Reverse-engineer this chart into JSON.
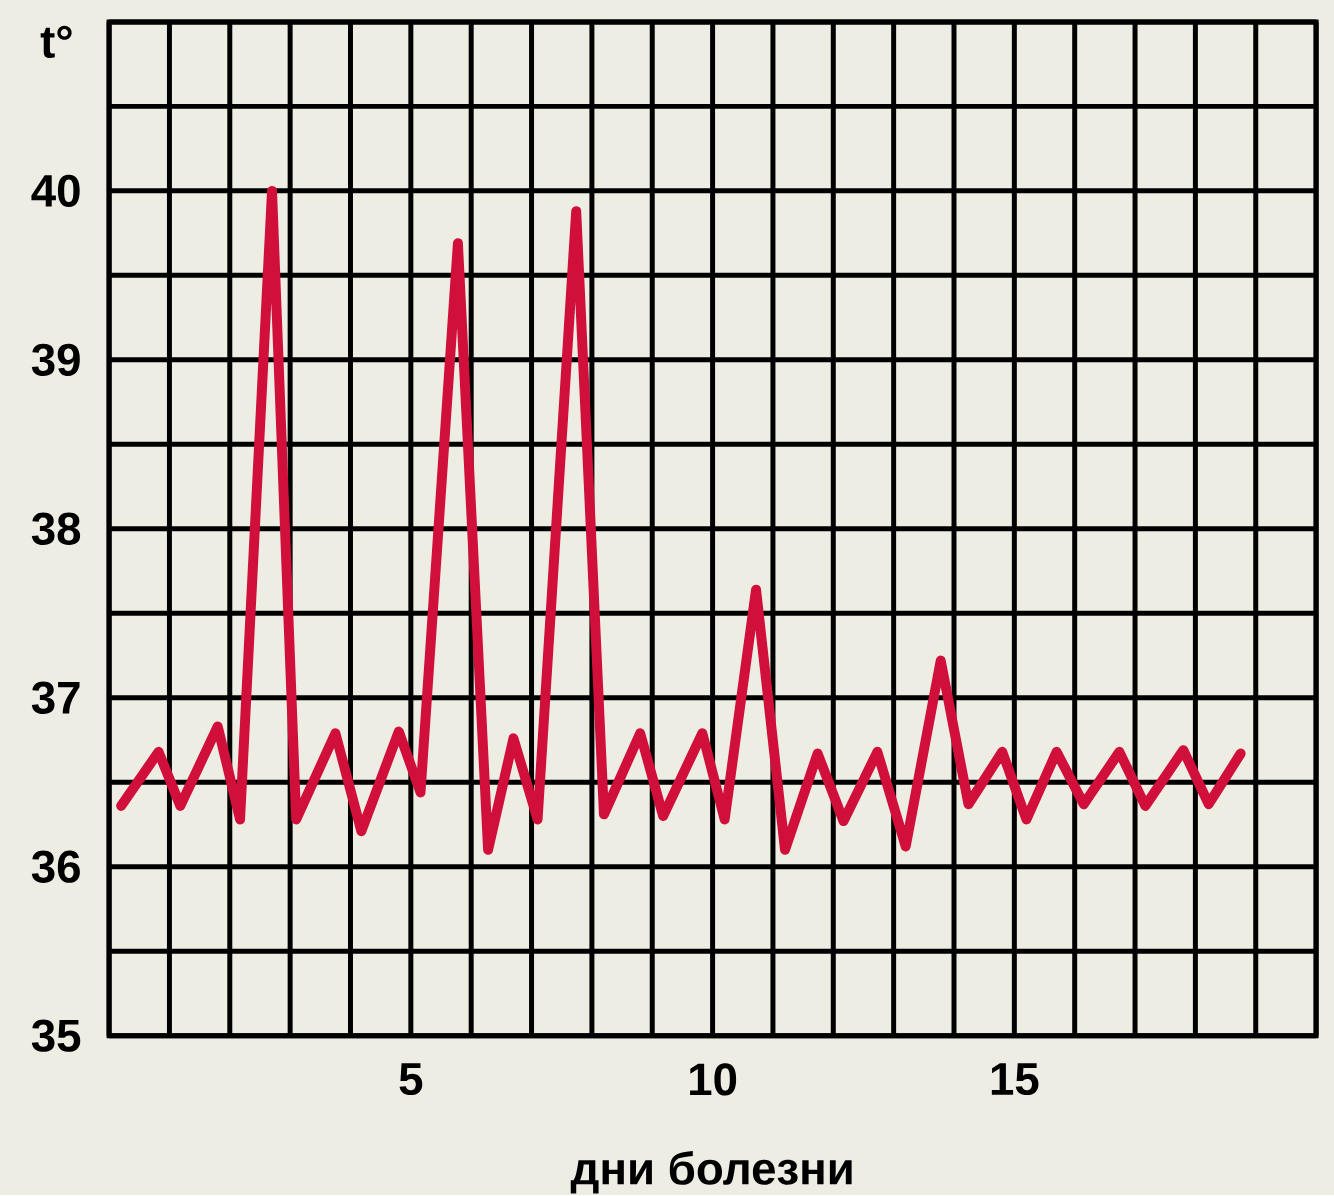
{
  "chart_data": {
    "type": "line",
    "xlabel": "дни болезни",
    "ylabel": "t°",
    "xlim": [
      0,
      20
    ],
    "ylim": [
      35,
      41
    ],
    "xticks": [
      {
        "value": 0,
        "label": null
      },
      {
        "value": 1,
        "label": null
      },
      {
        "value": 2,
        "label": null
      },
      {
        "value": 3,
        "label": null
      },
      {
        "value": 4,
        "label": null
      },
      5,
      {
        "value": 6,
        "label": null
      },
      {
        "value": 7,
        "label": null
      },
      {
        "value": 8,
        "label": null
      },
      {
        "value": 9,
        "label": null
      },
      10,
      {
        "value": 11,
        "label": null
      },
      {
        "value": 12,
        "label": null
      },
      {
        "value": 13,
        "label": null
      },
      {
        "value": 14,
        "label": null
      },
      15,
      {
        "value": 16,
        "label": null
      },
      {
        "value": 17,
        "label": null
      },
      {
        "value": 18,
        "label": null
      },
      {
        "value": 19,
        "label": null
      },
      {
        "value": 20,
        "label": null
      }
    ],
    "yticks": [
      35,
      {
        "value": 35.5,
        "label": null
      },
      36,
      {
        "value": 36.5,
        "label": null
      },
      37,
      {
        "value": 37.5,
        "label": null
      },
      38,
      {
        "value": 38.5,
        "label": null
      },
      39,
      {
        "value": 39.5,
        "label": null
      },
      40,
      {
        "value": 40.5,
        "label": null
      },
      {
        "value": 41,
        "label": null
      }
    ],
    "grid": true,
    "series": [
      {
        "color": "#d0103a",
        "x": [
          0.2,
          0.82,
          1.18,
          1.8,
          2.17,
          2.7,
          3.1,
          3.75,
          4.18,
          4.8,
          5.16,
          5.78,
          6.28,
          6.7,
          7.1,
          7.74,
          8.2,
          8.8,
          9.18,
          9.83,
          10.2,
          10.72,
          11.2,
          11.74,
          12.17,
          12.73,
          13.2,
          13.78,
          14.24,
          14.8,
          15.2,
          15.7,
          16.15,
          16.74,
          17.17,
          17.8,
          18.22,
          18.75
        ],
        "values": [
          36.36,
          36.68,
          36.36,
          36.83,
          36.28,
          40.0,
          36.28,
          36.79,
          36.21,
          36.8,
          36.44,
          39.69,
          36.1,
          36.76,
          36.28,
          39.88,
          36.31,
          36.79,
          36.3,
          36.79,
          36.28,
          37.64,
          36.1,
          36.67,
          36.27,
          36.68,
          36.12,
          37.22,
          36.37,
          36.68,
          36.28,
          36.68,
          36.37,
          36.68,
          36.36,
          36.69,
          36.37,
          36.67
        ]
      }
    ]
  }
}
